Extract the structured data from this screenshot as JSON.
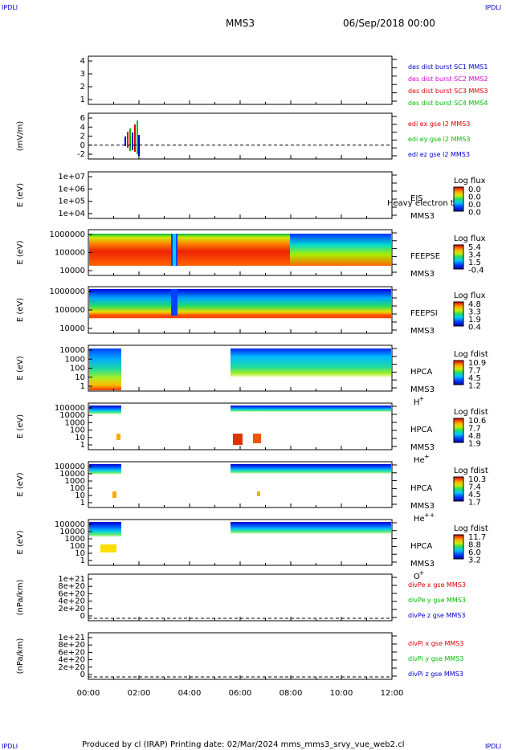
{
  "header": {
    "corner_left_top": "IPDLI",
    "corner_right_top": "IPDLI",
    "mission": "MMS3",
    "datetime": "06/Sep/2018 00:00",
    "corner_left_bottom": "IPDLI",
    "corner_right_bottom": "IPDLI"
  },
  "footer": {
    "text": "Produced by cl (IRAP)   Printing date: 02/Mar/2024   mms_mms3_srvy_vue_web2.cl"
  },
  "colors": {
    "bg": "#ffffff",
    "axis": "#000000",
    "blue": "#0000cc",
    "magenta": "#dd00dd",
    "red": "#dd0000",
    "green": "#00bb00",
    "darkblue": "#000099"
  },
  "chart_data": [
    {
      "type": "line",
      "name": "burst-panel",
      "yticks": [
        "4",
        "3",
        "2",
        "1"
      ],
      "ylim": [
        0.5,
        4.5
      ],
      "legend": [
        {
          "text": "des dist burst SC1 MMS1",
          "color": "#0000cc"
        },
        {
          "text": "des dist burst SC2 MMS2",
          "color": "#dd00dd"
        },
        {
          "text": "des dist burst SC3 MMS3",
          "color": "#dd0000"
        },
        {
          "text": "des dist burst SC4 MMS4",
          "color": "#00bb00"
        }
      ]
    },
    {
      "type": "line",
      "name": "edi-panel",
      "ylabel": "(mV/m)",
      "yticks": [
        "6",
        "4",
        "2",
        "0",
        "-2"
      ],
      "ylim": [
        -3,
        6
      ],
      "legend": [
        {
          "text": "edi ex gse l2 MMS3",
          "color": "#dd0000"
        },
        {
          "text": "edi ey gse l2 MMS3",
          "color": "#00bb00"
        },
        {
          "text": "edi ez gse l2 MMS3",
          "color": "#0000cc"
        }
      ]
    },
    {
      "type": "heatmap",
      "name": "eis-panel",
      "ylabel": "E (eV)",
      "yticks": [
        "1e+07",
        "1e+06",
        "1e+05",
        "1e+04"
      ],
      "side": [
        "EIS",
        "MMS3"
      ],
      "overlay": "Heavy electron to",
      "cbar_title": "Log flux",
      "cbar_ticks": [
        "0.0",
        "0.0",
        "0.0",
        "0.0"
      ]
    },
    {
      "type": "heatmap",
      "name": "feepse-panel",
      "ylabel": "E (eV)",
      "yticks": [
        "1000000",
        "100000",
        "10000"
      ],
      "side": [
        "FEEPSE",
        "MMS3"
      ],
      "cbar_title": "Log flux",
      "cbar_ticks": [
        "5.4",
        "3.4",
        "1.5",
        "-0.4"
      ]
    },
    {
      "type": "heatmap",
      "name": "feepsi-panel",
      "ylabel": "E (eV)",
      "yticks": [
        "1000000",
        "100000",
        "10000"
      ],
      "side": [
        "FEEPSI",
        "MMS3"
      ],
      "cbar_title": "Log flux",
      "cbar_ticks": [
        "4.8",
        "3.3",
        "1.9",
        "0.4"
      ]
    },
    {
      "type": "heatmap",
      "name": "hpca-h-panel",
      "ylabel": "E (eV)",
      "yticks": [
        "10000",
        "1000",
        "100",
        "10",
        "1"
      ],
      "side": [
        "HPCA",
        "MMS3",
        "H",
        "+"
      ],
      "cbar_title": "Log fdist",
      "cbar_ticks": [
        "10.9",
        "7.7",
        "4.5",
        "1.2"
      ]
    },
    {
      "type": "heatmap",
      "name": "hpca-he-panel",
      "ylabel": "E (eV)",
      "yticks": [
        "100000",
        "10000",
        "1000",
        "100",
        "10",
        "1"
      ],
      "side": [
        "HPCA",
        "MMS3",
        "He",
        "+"
      ],
      "cbar_title": "Log fdist",
      "cbar_ticks": [
        "10.6",
        "7.7",
        "4.8",
        "1.9"
      ]
    },
    {
      "type": "heatmap",
      "name": "hpca-he2-panel",
      "ylabel": "E (eV)",
      "yticks": [
        "100000",
        "10000",
        "1000",
        "100",
        "10",
        "1"
      ],
      "side": [
        "HPCA",
        "MMS3",
        "He",
        "++"
      ],
      "cbar_title": "Log fdist",
      "cbar_ticks": [
        "10.3",
        "7.4",
        "4.5",
        "1.7"
      ]
    },
    {
      "type": "heatmap",
      "name": "hpca-o-panel",
      "ylabel": "E (eV)",
      "yticks": [
        "100000",
        "10000",
        "1000",
        "100",
        "10",
        "1"
      ],
      "side": [
        "HPCA",
        "MMS3",
        "O",
        "+"
      ],
      "cbar_title": "Log fdist",
      "cbar_ticks": [
        "11.7",
        "8.8",
        "6.0",
        "3.2"
      ]
    },
    {
      "type": "line",
      "name": "divpe-panel",
      "ylabel": "(nPa/km)",
      "yticks": [
        "1e+21",
        "8e+20",
        "6e+20",
        "4e+20",
        "2e+20",
        "0"
      ],
      "legend": [
        {
          "text": "divPe x gse MMS3",
          "color": "#dd0000"
        },
        {
          "text": "divPe y gse MMS3",
          "color": "#00bb00"
        },
        {
          "text": "divPe z gse MMS3",
          "color": "#0000cc"
        }
      ]
    },
    {
      "type": "line",
      "name": "divpi-panel",
      "ylabel": "(nPa/km)",
      "yticks": [
        "1e+21",
        "8e+20",
        "6e+20",
        "4e+20",
        "2e+20",
        "0"
      ],
      "legend": [
        {
          "text": "divPi x gse MMS3",
          "color": "#dd0000"
        },
        {
          "text": "divPi y gse MMS3",
          "color": "#00bb00"
        },
        {
          "text": "divPi z gse MMS3",
          "color": "#0000cc"
        }
      ]
    }
  ],
  "xaxis": {
    "ticks": [
      "00:00",
      "02:00",
      "04:00",
      "06:00",
      "08:00",
      "10:00",
      "12:00"
    ],
    "xlim_hours": [
      0,
      12
    ]
  }
}
